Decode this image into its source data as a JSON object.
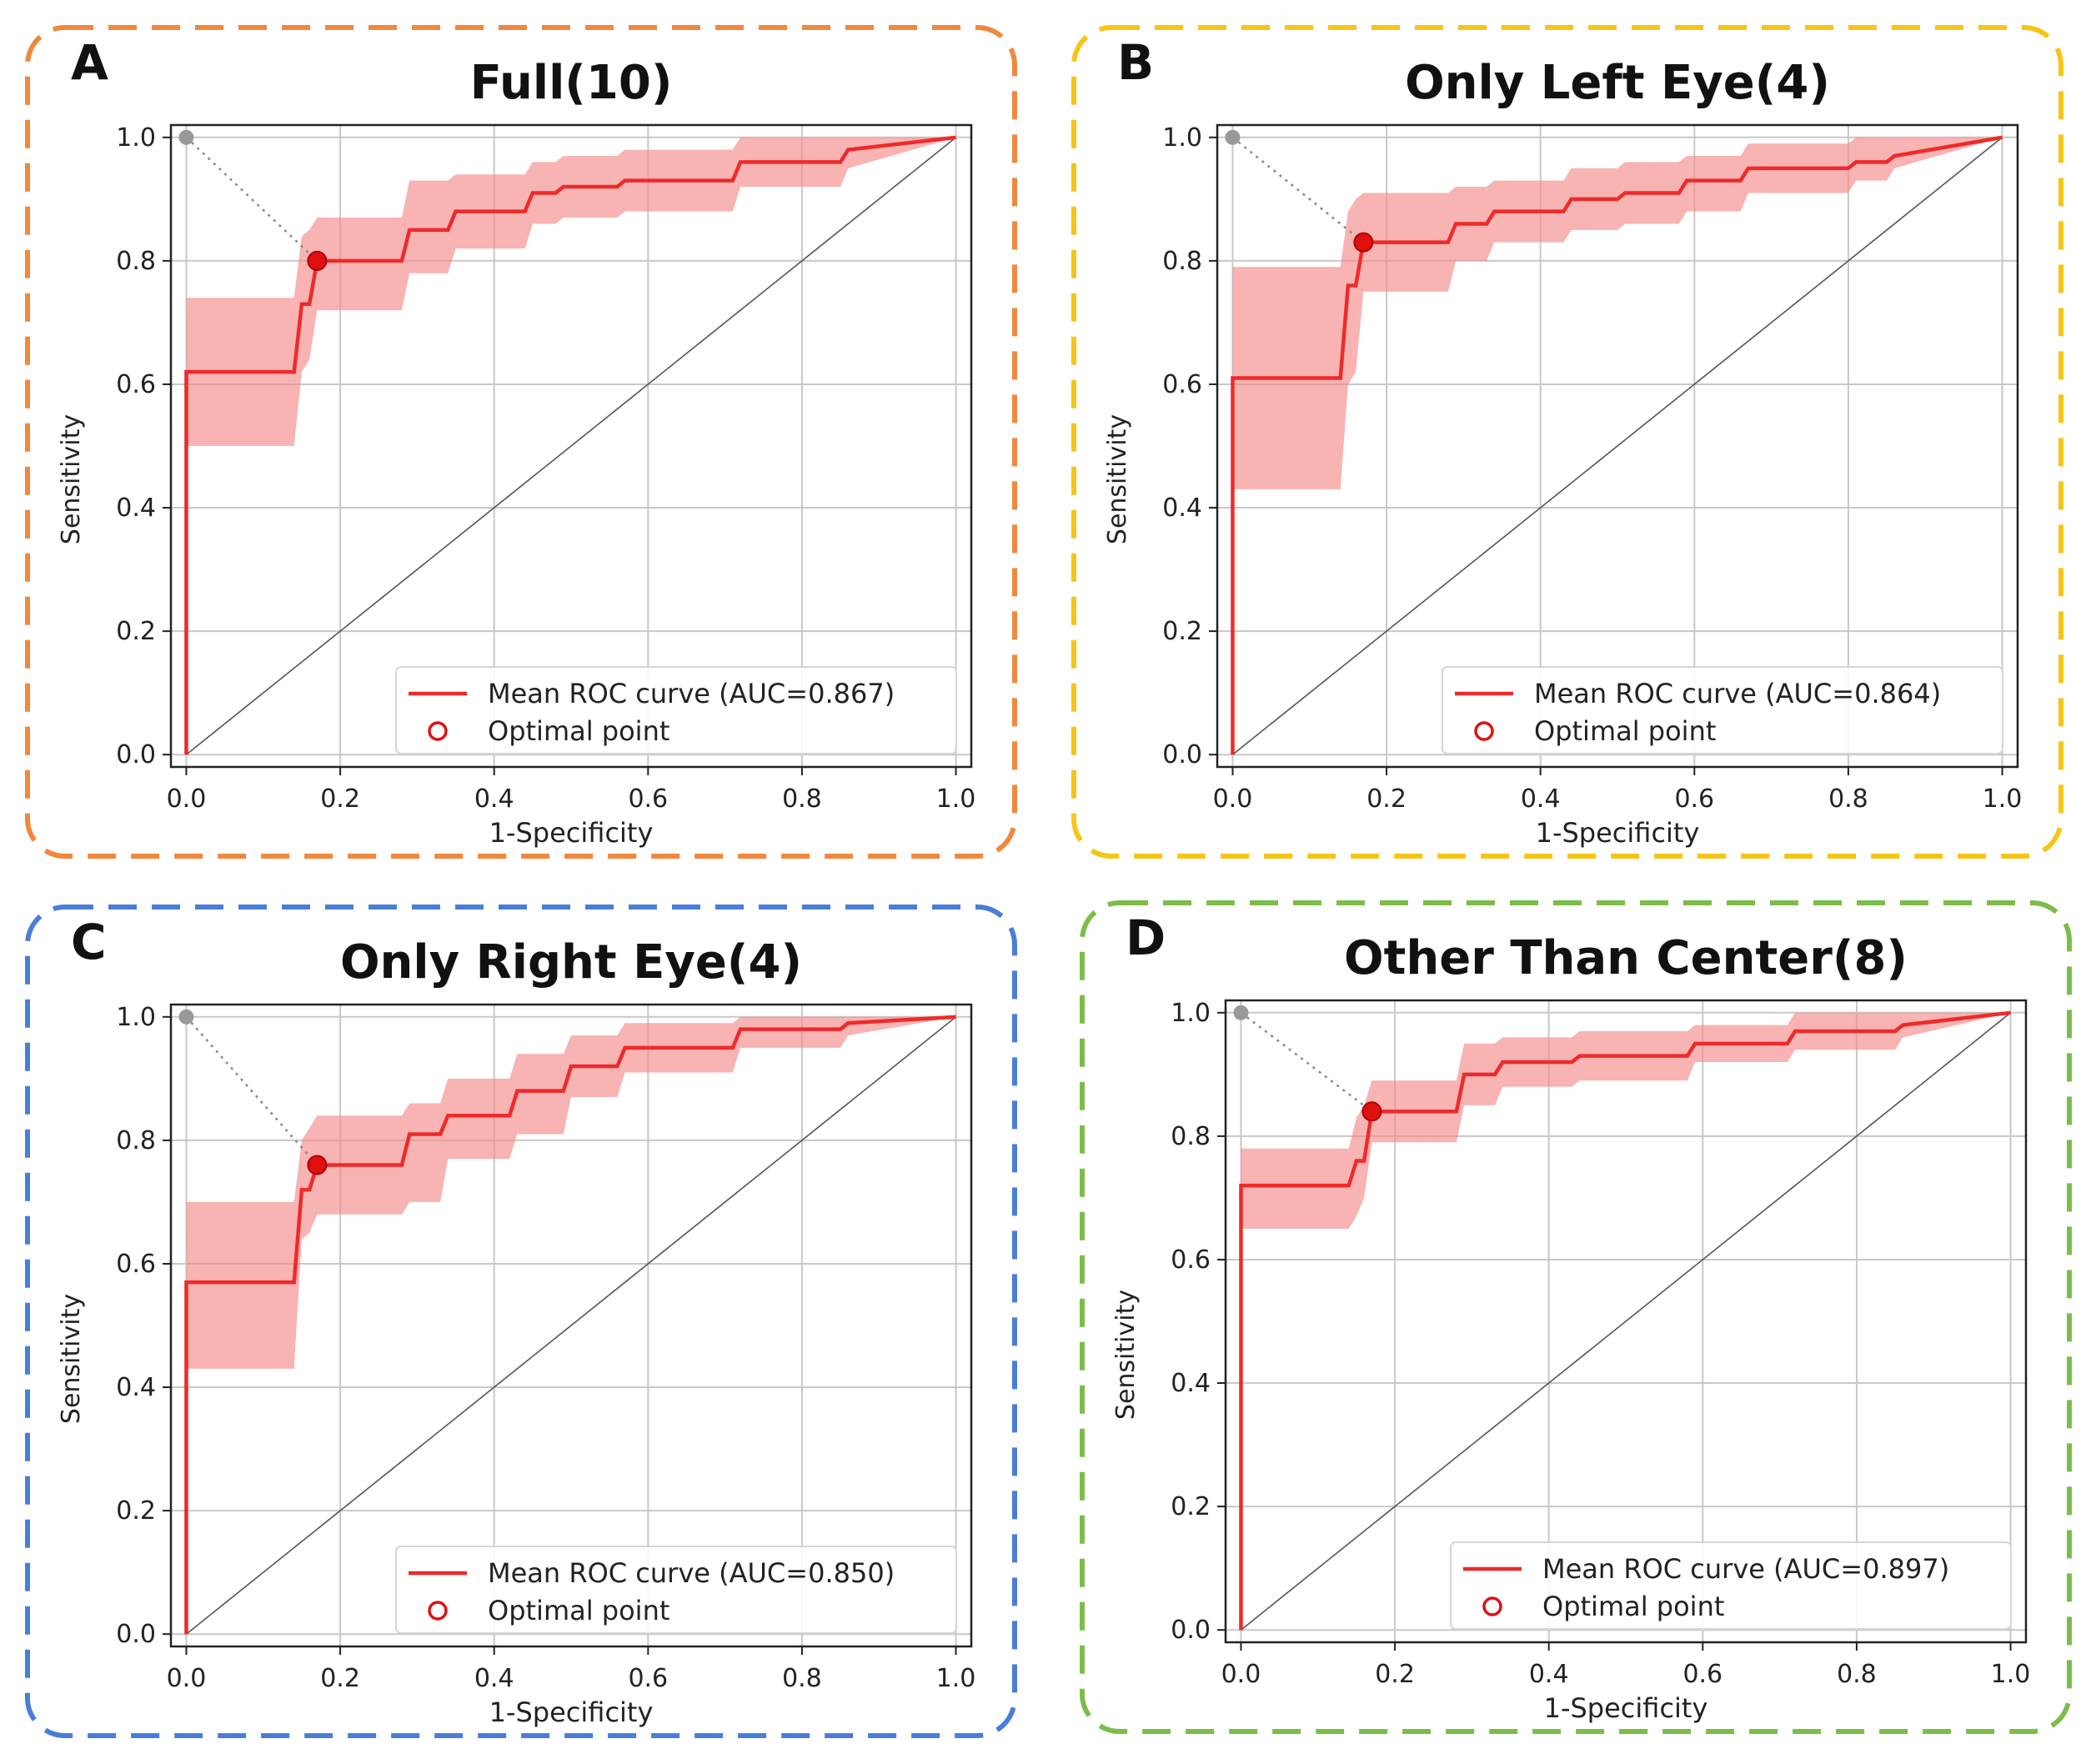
{
  "chart_data": [
    {
      "type": "line",
      "panel_label": "A",
      "title": "Full(10)",
      "frame_color": "#f0883e",
      "xlabel": "1-Specificity",
      "ylabel": "Sensitivity",
      "xlim": [
        -0.02,
        1.02
      ],
      "ylim": [
        -0.02,
        1.02
      ],
      "xticks": [
        "0.0",
        "0.2",
        "0.4",
        "0.6",
        "0.8",
        "1.0"
      ],
      "yticks": [
        "0.0",
        "0.2",
        "0.4",
        "0.6",
        "0.8",
        "1.0"
      ],
      "grid": true,
      "legend_position": "lower-right",
      "series": [
        {
          "name": "Mean ROC curve (AUC=0.867)",
          "color": "#ee2a2a",
          "x": [
            0.0,
            0.0,
            0.14,
            0.15,
            0.16,
            0.17,
            0.28,
            0.29,
            0.34,
            0.35,
            0.44,
            0.45,
            0.48,
            0.49,
            0.56,
            0.57,
            0.71,
            0.72,
            0.85,
            0.86,
            1.0
          ],
          "y": [
            0.0,
            0.62,
            0.62,
            0.73,
            0.73,
            0.8,
            0.8,
            0.85,
            0.85,
            0.88,
            0.88,
            0.91,
            0.91,
            0.92,
            0.92,
            0.93,
            0.93,
            0.96,
            0.96,
            0.98,
            1.0
          ],
          "band_upper": [
            0.0,
            0.74,
            0.74,
            0.84,
            0.85,
            0.87,
            0.87,
            0.93,
            0.93,
            0.94,
            0.94,
            0.96,
            0.96,
            0.97,
            0.97,
            0.98,
            0.98,
            1.0,
            1.0,
            1.0,
            1.0
          ],
          "band_lower": [
            0.0,
            0.5,
            0.5,
            0.62,
            0.64,
            0.72,
            0.72,
            0.78,
            0.78,
            0.82,
            0.82,
            0.86,
            0.86,
            0.87,
            0.87,
            0.88,
            0.88,
            0.92,
            0.92,
            0.95,
            1.0
          ]
        }
      ],
      "optimal_point": {
        "label": "Optimal point",
        "x": 0.17,
        "y": 0.8
      },
      "reference_point": [
        0.0,
        1.0
      ]
    },
    {
      "type": "line",
      "panel_label": "B",
      "title": "Only Left Eye(4)",
      "frame_color": "#f5c518",
      "xlabel": "1-Specificity",
      "ylabel": "Sensitivity",
      "xlim": [
        -0.02,
        1.02
      ],
      "ylim": [
        -0.02,
        1.02
      ],
      "xticks": [
        "0.0",
        "0.2",
        "0.4",
        "0.6",
        "0.8",
        "1.0"
      ],
      "yticks": [
        "0.0",
        "0.2",
        "0.4",
        "0.6",
        "0.8",
        "1.0"
      ],
      "grid": true,
      "legend_position": "lower-right",
      "series": [
        {
          "name": "Mean ROC curve (AUC=0.864)",
          "color": "#ee2a2a",
          "x": [
            0.0,
            0.0,
            0.14,
            0.15,
            0.16,
            0.17,
            0.28,
            0.29,
            0.33,
            0.34,
            0.43,
            0.44,
            0.5,
            0.51,
            0.58,
            0.59,
            0.66,
            0.67,
            0.8,
            0.81,
            0.85,
            0.86,
            1.0
          ],
          "y": [
            0.0,
            0.61,
            0.61,
            0.76,
            0.76,
            0.83,
            0.83,
            0.86,
            0.86,
            0.88,
            0.88,
            0.9,
            0.9,
            0.91,
            0.91,
            0.93,
            0.93,
            0.95,
            0.95,
            0.96,
            0.96,
            0.97,
            1.0
          ],
          "band_upper": [
            0.0,
            0.79,
            0.79,
            0.88,
            0.9,
            0.91,
            0.91,
            0.92,
            0.92,
            0.93,
            0.93,
            0.95,
            0.95,
            0.96,
            0.96,
            0.97,
            0.97,
            0.99,
            0.99,
            1.0,
            1.0,
            1.0,
            1.0
          ],
          "band_lower": [
            0.0,
            0.43,
            0.43,
            0.6,
            0.62,
            0.75,
            0.75,
            0.8,
            0.8,
            0.83,
            0.83,
            0.85,
            0.85,
            0.86,
            0.86,
            0.88,
            0.88,
            0.91,
            0.91,
            0.93,
            0.93,
            0.95,
            1.0
          ]
        }
      ],
      "optimal_point": {
        "label": "Optimal point",
        "x": 0.17,
        "y": 0.83
      },
      "reference_point": [
        0.0,
        1.0
      ]
    },
    {
      "type": "line",
      "panel_label": "C",
      "title": "Only Right Eye(4)",
      "frame_color": "#4a7ed6",
      "xlabel": "1-Specificity",
      "ylabel": "Sensitivity",
      "xlim": [
        -0.02,
        1.02
      ],
      "ylim": [
        -0.02,
        1.02
      ],
      "xticks": [
        "0.0",
        "0.2",
        "0.4",
        "0.6",
        "0.8",
        "1.0"
      ],
      "yticks": [
        "0.0",
        "0.2",
        "0.4",
        "0.6",
        "0.8",
        "1.0"
      ],
      "grid": true,
      "legend_position": "lower-right",
      "series": [
        {
          "name": "Mean ROC curve (AUC=0.850)",
          "color": "#ee2a2a",
          "x": [
            0.0,
            0.0,
            0.14,
            0.15,
            0.16,
            0.17,
            0.28,
            0.29,
            0.33,
            0.34,
            0.42,
            0.43,
            0.49,
            0.5,
            0.56,
            0.57,
            0.71,
            0.72,
            0.85,
            0.86,
            1.0
          ],
          "y": [
            0.0,
            0.57,
            0.57,
            0.72,
            0.72,
            0.76,
            0.76,
            0.81,
            0.81,
            0.84,
            0.84,
            0.88,
            0.88,
            0.92,
            0.92,
            0.95,
            0.95,
            0.98,
            0.98,
            0.99,
            1.0
          ],
          "band_upper": [
            0.0,
            0.7,
            0.7,
            0.8,
            0.82,
            0.84,
            0.84,
            0.86,
            0.86,
            0.9,
            0.9,
            0.94,
            0.94,
            0.97,
            0.97,
            0.99,
            0.99,
            1.0,
            1.0,
            1.0,
            1.0
          ],
          "band_lower": [
            0.0,
            0.43,
            0.43,
            0.64,
            0.65,
            0.68,
            0.68,
            0.7,
            0.7,
            0.77,
            0.77,
            0.81,
            0.81,
            0.87,
            0.87,
            0.91,
            0.91,
            0.95,
            0.95,
            0.97,
            1.0
          ]
        }
      ],
      "optimal_point": {
        "label": "Optimal point",
        "x": 0.17,
        "y": 0.76
      },
      "reference_point": [
        0.0,
        1.0
      ]
    },
    {
      "type": "line",
      "panel_label": "D",
      "title": "Other Than Center(8)",
      "frame_color": "#7cbd4a",
      "xlabel": "1-Specificity",
      "ylabel": "Sensitivity",
      "xlim": [
        -0.02,
        1.02
      ],
      "ylim": [
        -0.02,
        1.02
      ],
      "xticks": [
        "0.0",
        "0.2",
        "0.4",
        "0.6",
        "0.8",
        "1.0"
      ],
      "yticks": [
        "0.0",
        "0.2",
        "0.4",
        "0.6",
        "0.8",
        "1.0"
      ],
      "grid": true,
      "legend_position": "lower-right",
      "series": [
        {
          "name": "Mean ROC curve (AUC=0.897)",
          "color": "#ee2a2a",
          "x": [
            0.0,
            0.0,
            0.14,
            0.15,
            0.16,
            0.17,
            0.28,
            0.29,
            0.33,
            0.34,
            0.43,
            0.44,
            0.58,
            0.59,
            0.71,
            0.72,
            0.85,
            0.86,
            1.0
          ],
          "y": [
            0.0,
            0.72,
            0.72,
            0.76,
            0.76,
            0.84,
            0.84,
            0.9,
            0.9,
            0.92,
            0.92,
            0.93,
            0.93,
            0.95,
            0.95,
            0.97,
            0.97,
            0.98,
            1.0
          ],
          "band_upper": [
            0.0,
            0.78,
            0.78,
            0.83,
            0.85,
            0.89,
            0.89,
            0.95,
            0.95,
            0.96,
            0.96,
            0.97,
            0.97,
            0.98,
            0.98,
            1.0,
            1.0,
            1.0,
            1.0
          ],
          "band_lower": [
            0.0,
            0.65,
            0.65,
            0.67,
            0.7,
            0.79,
            0.79,
            0.85,
            0.85,
            0.88,
            0.88,
            0.89,
            0.89,
            0.92,
            0.92,
            0.94,
            0.94,
            0.96,
            1.0
          ]
        }
      ],
      "optimal_point": {
        "label": "Optimal point",
        "x": 0.17,
        "y": 0.84
      },
      "reference_point": [
        0.0,
        1.0
      ]
    }
  ]
}
